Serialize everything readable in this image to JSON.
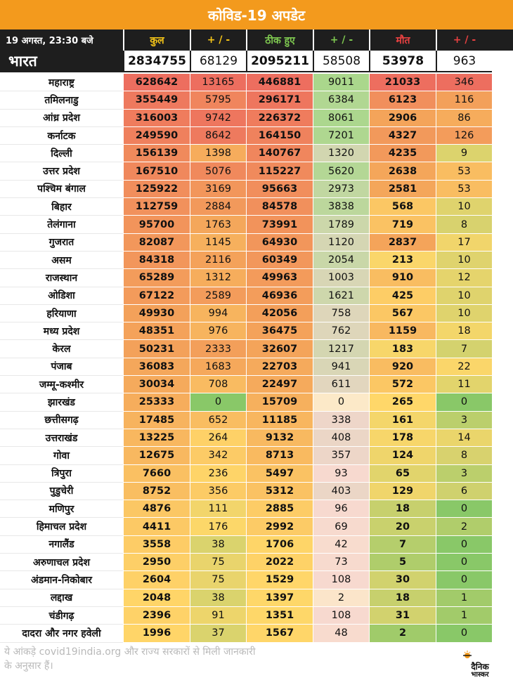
{
  "title": "कोविड-19 अपडेट",
  "header": {
    "date_time": "19 अगस्त, 23:30 बजे",
    "col_total": "कुल",
    "col_total_change": "+ / -",
    "col_recovered": "ठीक हुए",
    "col_recovered_change": "+ / -",
    "col_deaths": "मौत",
    "col_deaths_change": "+ / -"
  },
  "header_colors": {
    "total": "#f5c518",
    "total_change": "#f5c518",
    "recovered": "#7ec850",
    "recovered_change": "#7ec850",
    "deaths": "#e84141",
    "deaths_change": "#e84141"
  },
  "national": {
    "name": "भारत",
    "total": "2834755",
    "total_change": "68129",
    "recovered": "2095211",
    "recovered_change": "58508",
    "deaths": "53978",
    "deaths_change": "963"
  },
  "states": [
    {
      "name": "महाराष्ट्र",
      "total": "628642",
      "total_change": "13165",
      "recovered": "446881",
      "recovered_change": "9011",
      "deaths": "21033",
      "deaths_change": "346"
    },
    {
      "name": "तमिलनाडु",
      "total": "355449",
      "total_change": "5795",
      "recovered": "296171",
      "recovered_change": "6384",
      "deaths": "6123",
      "deaths_change": "116"
    },
    {
      "name": "आंध्र प्रदेश",
      "total": "316003",
      "total_change": "9742",
      "recovered": "226372",
      "recovered_change": "8061",
      "deaths": "2906",
      "deaths_change": "86"
    },
    {
      "name": "कर्नाटक",
      "total": "249590",
      "total_change": "8642",
      "recovered": "164150",
      "recovered_change": "7201",
      "deaths": "4327",
      "deaths_change": "126"
    },
    {
      "name": "दिल्ली",
      "total": "156139",
      "total_change": "1398",
      "recovered": "140767",
      "recovered_change": "1320",
      "deaths": "4235",
      "deaths_change": "9"
    },
    {
      "name": "उत्तर प्रदेश",
      "total": "167510",
      "total_change": "5076",
      "recovered": "115227",
      "recovered_change": "5620",
      "deaths": "2638",
      "deaths_change": "53"
    },
    {
      "name": "पश्चिम बंगाल",
      "total": "125922",
      "total_change": "3169",
      "recovered": "95663",
      "recovered_change": "2973",
      "deaths": "2581",
      "deaths_change": "53"
    },
    {
      "name": "बिहार",
      "total": "112759",
      "total_change": "2884",
      "recovered": "84578",
      "recovered_change": "3838",
      "deaths": "568",
      "deaths_change": "10"
    },
    {
      "name": "तेलंगाना",
      "total": "95700",
      "total_change": "1763",
      "recovered": "73991",
      "recovered_change": "1789",
      "deaths": "719",
      "deaths_change": "8"
    },
    {
      "name": "गुजरात",
      "total": "82087",
      "total_change": "1145",
      "recovered": "64930",
      "recovered_change": "1120",
      "deaths": "2837",
      "deaths_change": "17"
    },
    {
      "name": "असम",
      "total": "84318",
      "total_change": "2116",
      "recovered": "60349",
      "recovered_change": "2054",
      "deaths": "213",
      "deaths_change": "10"
    },
    {
      "name": "राजस्थान",
      "total": "65289",
      "total_change": "1312",
      "recovered": "49963",
      "recovered_change": "1003",
      "deaths": "910",
      "deaths_change": "12"
    },
    {
      "name": "ओडिशा",
      "total": "67122",
      "total_change": "2589",
      "recovered": "46936",
      "recovered_change": "1621",
      "deaths": "425",
      "deaths_change": "10"
    },
    {
      "name": "हरियाणा",
      "total": "49930",
      "total_change": "994",
      "recovered": "42056",
      "recovered_change": "758",
      "deaths": "567",
      "deaths_change": "10"
    },
    {
      "name": "मध्य प्रदेश",
      "total": "48351",
      "total_change": "976",
      "recovered": "36475",
      "recovered_change": "762",
      "deaths": "1159",
      "deaths_change": "18"
    },
    {
      "name": "केरल",
      "total": "50231",
      "total_change": "2333",
      "recovered": "32607",
      "recovered_change": "1217",
      "deaths": "183",
      "deaths_change": "7"
    },
    {
      "name": "पंजाब",
      "total": "36083",
      "total_change": "1683",
      "recovered": "22703",
      "recovered_change": "941",
      "deaths": "920",
      "deaths_change": "22"
    },
    {
      "name": "जम्मू-कश्मीर",
      "total": "30034",
      "total_change": "708",
      "recovered": "22497",
      "recovered_change": "611",
      "deaths": "572",
      "deaths_change": "11"
    },
    {
      "name": "झारखंड",
      "total": "25333",
      "total_change": "0",
      "recovered": "15709",
      "recovered_change": "0",
      "deaths": "265",
      "deaths_change": "0"
    },
    {
      "name": "छत्तीसगढ़",
      "total": "17485",
      "total_change": "652",
      "recovered": "11185",
      "recovered_change": "338",
      "deaths": "161",
      "deaths_change": "3"
    },
    {
      "name": "उत्तराखंड",
      "total": "13225",
      "total_change": "264",
      "recovered": "9132",
      "recovered_change": "408",
      "deaths": "178",
      "deaths_change": "14"
    },
    {
      "name": "गोवा",
      "total": "12675",
      "total_change": "342",
      "recovered": "8713",
      "recovered_change": "357",
      "deaths": "124",
      "deaths_change": "8"
    },
    {
      "name": "त्रिपुरा",
      "total": "7660",
      "total_change": "236",
      "recovered": "5497",
      "recovered_change": "93",
      "deaths": "65",
      "deaths_change": "3"
    },
    {
      "name": "पुडुचेरी",
      "total": "8752",
      "total_change": "356",
      "recovered": "5312",
      "recovered_change": "403",
      "deaths": "129",
      "deaths_change": "6"
    },
    {
      "name": "मणिपुर",
      "total": "4876",
      "total_change": "111",
      "recovered": "2885",
      "recovered_change": "96",
      "deaths": "18",
      "deaths_change": "0"
    },
    {
      "name": "हिमाचल प्रदेश",
      "total": "4411",
      "total_change": "176",
      "recovered": "2992",
      "recovered_change": "69",
      "deaths": "20",
      "deaths_change": "2"
    },
    {
      "name": "नगालैंड",
      "total": "3558",
      "total_change": "38",
      "recovered": "1706",
      "recovered_change": "42",
      "deaths": "7",
      "deaths_change": "0"
    },
    {
      "name": "अरुणाचल प्रदेश",
      "total": "2950",
      "total_change": "75",
      "recovered": "2022",
      "recovered_change": "73",
      "deaths": "5",
      "deaths_change": "0"
    },
    {
      "name": "अंडमान-निकोबार",
      "total": "2604",
      "total_change": "75",
      "recovered": "1529",
      "recovered_change": "108",
      "deaths": "30",
      "deaths_change": "0"
    },
    {
      "name": "लद्दाख",
      "total": "2048",
      "total_change": "38",
      "recovered": "1397",
      "recovered_change": "2",
      "deaths": "18",
      "deaths_change": "1"
    },
    {
      "name": "चंडीगढ़",
      "total": "2396",
      "total_change": "91",
      "recovered": "1351",
      "recovered_change": "108",
      "deaths": "31",
      "deaths_change": "1"
    },
    {
      "name": "दादरा और नगर हवेली",
      "total": "1996",
      "total_change": "37",
      "recovered": "1567",
      "recovered_change": "48",
      "deaths": "2",
      "deaths_change": "0"
    }
  ],
  "footer": {
    "note": "ये आंकड़े covid19india.org और राज्य सरकारों से मिली जानकारी के अनुसार हैं।",
    "logo_line1": "दैनिक",
    "logo_line2": "भास्कर"
  }
}
